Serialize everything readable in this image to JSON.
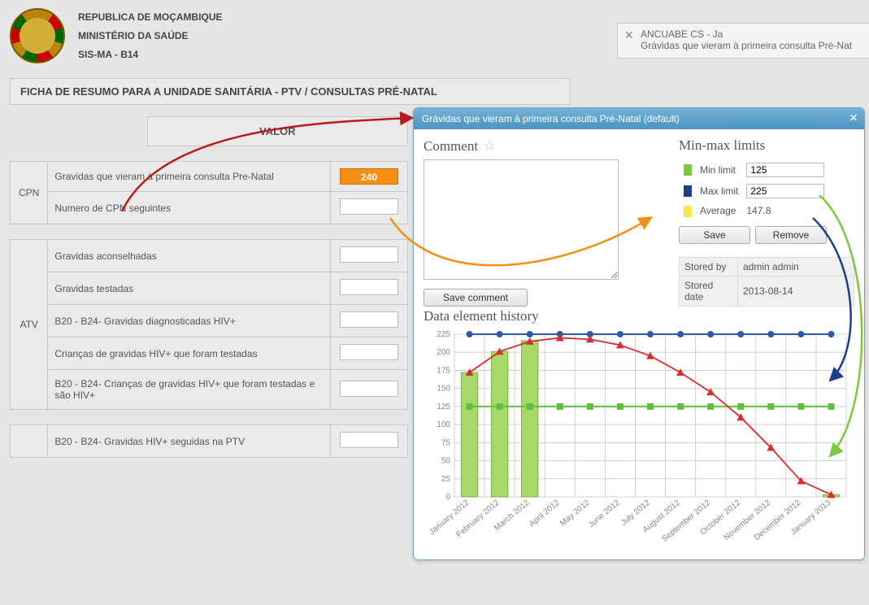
{
  "header": {
    "line1": "REPUBLICA DE MOÇAMBIQUE",
    "line2": "MINISTÉRIO DA SAÚDE",
    "line3": "SIS-MA - B14"
  },
  "page_title": "FICHA DE RESUMO PARA A UNIDADE SANITÁRIA - PTV / CONSULTAS PRÉ-NATAL",
  "notification": {
    "line1": "ANCUABE CS - Ja",
    "line2": "Grávidas que vieram à primeira consulta Pré-Nat"
  },
  "form": {
    "value_header": "VALOR",
    "groups": [
      {
        "section": "CPN",
        "rows": [
          {
            "label": "Gravidas que vieram à primeira consulta Pre-Natal",
            "value": "240",
            "highlight": true
          },
          {
            "label": "Numero de CPN seguintes",
            "value": "",
            "highlight": false
          }
        ]
      },
      {
        "section": "ATV",
        "rows": [
          {
            "label": "Gravidas aconselhadas",
            "value": "",
            "highlight": false
          },
          {
            "label": "Gravidas testadas",
            "value": "",
            "highlight": false
          },
          {
            "label": "B20 - B24- Gravidas diagnosticadas HIV+",
            "value": "",
            "highlight": false
          },
          {
            "label": "Crianças de gravidas HIV+ que foram testadas",
            "value": "",
            "highlight": false
          },
          {
            "label": "B20 - B24- Crianças de gravidas HIV+ que foram testadas e são HIV+",
            "value": "",
            "highlight": false
          }
        ]
      },
      {
        "section": "",
        "rows": [
          {
            "label": "B20 - B24- Gravidas HIV+ seguidas na PTV",
            "value": "",
            "highlight": false
          }
        ]
      }
    ]
  },
  "dialog": {
    "title": "Grávidas que vieram à primeira consulta Pré-Natal (default)",
    "comment_label": "Comment",
    "save_comment": "Save comment",
    "limits": {
      "heading": "Min-max limits",
      "min_label": "Min limit",
      "min_value": "125",
      "min_color": "#7ac943",
      "max_label": "Max limit",
      "max_value": "225",
      "max_color": "#1c3e8c",
      "avg_label": "Average",
      "avg_value": "147.8",
      "avg_color": "#f5e84a",
      "save": "Save",
      "remove": "Remove"
    },
    "stored": {
      "by_label": "Stored by",
      "by_value": "admin admin",
      "date_label": "Stored date",
      "date_value": "2013-08-14"
    }
  },
  "chart": {
    "title": "Data element history",
    "type": "combo-bar-line",
    "x_labels": [
      "January 2012",
      "February 2012",
      "March 2012",
      "April 2012",
      "May 2012",
      "June 2012",
      "July 2012",
      "August 2012",
      "September 2012",
      "October 2012",
      "November 2012",
      "December 2012",
      "January 2013"
    ],
    "ylim": [
      0,
      225
    ],
    "ytick_step": 25,
    "bar_values": [
      172,
      201,
      216,
      0,
      0,
      0,
      0,
      0,
      0,
      0,
      0,
      0,
      3
    ],
    "bar_color": "#a6d96a",
    "bar_border": "#7cb342",
    "min_line_value": 125,
    "min_line_color": "#5fbf3a",
    "min_marker": "square",
    "max_line_value": 225,
    "max_line_color": "#2e5aa8",
    "max_marker": "circle",
    "trend_values": [
      172,
      201,
      215,
      220,
      218,
      210,
      195,
      172,
      145,
      110,
      68,
      22,
      3
    ],
    "trend_color": "#d62f2f",
    "trend_marker": "triangle",
    "background": "#ffffff",
    "grid_color": "#d0d0d0",
    "axis_fontsize": 10,
    "label_color": "#888"
  },
  "annotations": {
    "arrow_red": "#b71c1c",
    "arrow_orange": "#f58f13",
    "arrow_blue": "#1c3e8c",
    "arrow_green": "#7ac943"
  }
}
